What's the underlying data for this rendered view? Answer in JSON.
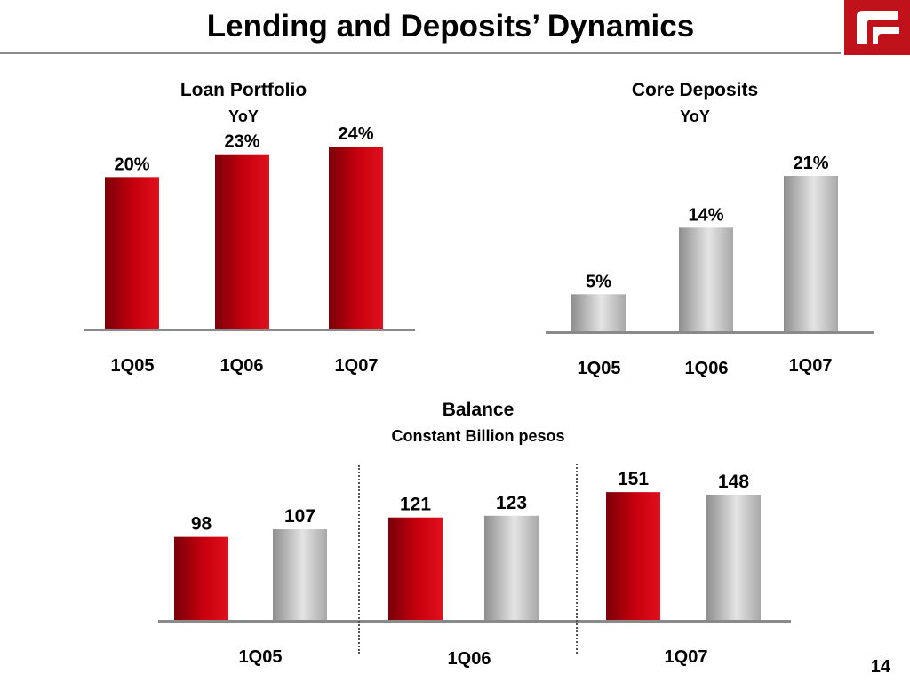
{
  "slide": {
    "title": "Lending and Deposits’ Dynamics",
    "page_number": "14",
    "colors": {
      "red": "#c8000e",
      "red_dark": "#7a0008",
      "gray": "#c8c8c8",
      "gray_dark": "#8e8e8e",
      "axis": "#8a8a8a"
    }
  },
  "logo": {
    "icon": "bank-logo-icon",
    "color": "#c0121b"
  },
  "chart_data": [
    {
      "id": "loan-portfolio",
      "type": "bar",
      "title": "Loan Portfolio",
      "subtitle": "YoY",
      "categories": [
        "1Q05",
        "1Q06",
        "1Q07"
      ],
      "series": [
        {
          "values": [
            20,
            23,
            24
          ],
          "color": "red",
          "labels": [
            "20%",
            "23%",
            "24%"
          ]
        }
      ],
      "ylim": [
        0,
        30
      ],
      "grid": false,
      "legend": "none"
    },
    {
      "id": "core-deposits",
      "type": "bar",
      "title": "Core Deposits",
      "subtitle": "YoY",
      "categories": [
        "1Q05",
        "1Q06",
        "1Q07"
      ],
      "series": [
        {
          "values": [
            5,
            14,
            21
          ],
          "color": "gray",
          "labels": [
            "5%",
            "14%",
            "21%"
          ]
        }
      ],
      "ylim": [
        0,
        30
      ],
      "grid": false,
      "legend": "none"
    },
    {
      "id": "balance",
      "type": "bar",
      "title": "Balance",
      "subtitle": "Constant Billion pesos",
      "categories": [
        "1Q05",
        "1Q06",
        "1Q07"
      ],
      "series": [
        {
          "values": [
            98,
            121,
            151
          ],
          "color": "red",
          "labels": [
            "98",
            "121",
            "151"
          ]
        },
        {
          "values": [
            107,
            123,
            148
          ],
          "color": "gray",
          "labels": [
            "107",
            "123",
            "148"
          ]
        }
      ],
      "ylim": [
        0,
        165
      ],
      "grid": false,
      "legend": "none"
    }
  ]
}
